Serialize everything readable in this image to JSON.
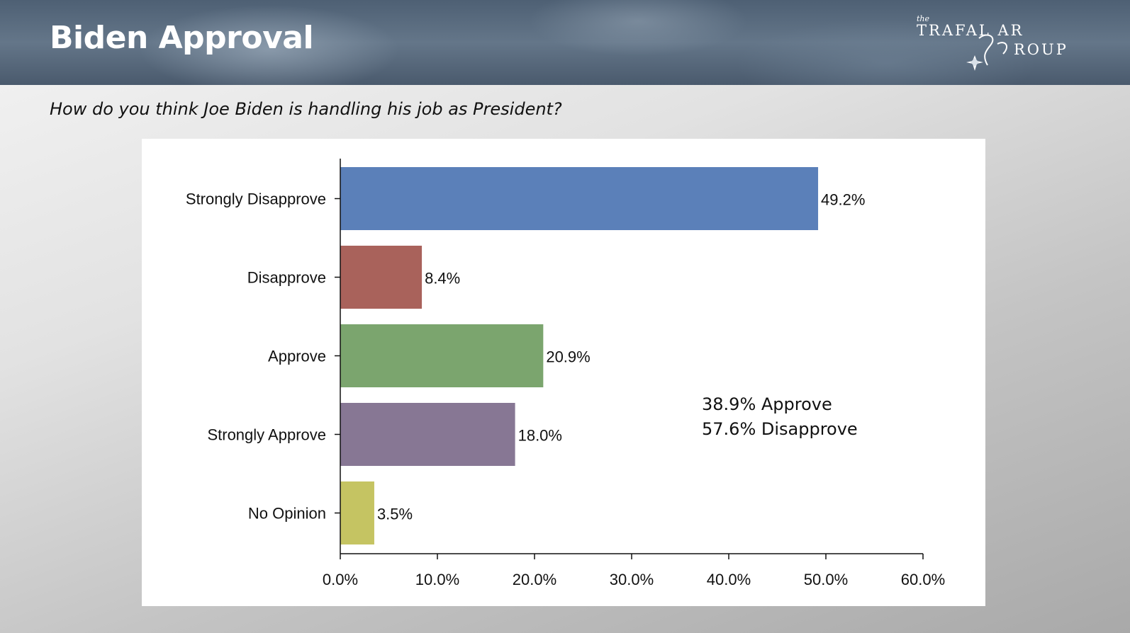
{
  "header": {
    "title": "Biden Approval",
    "logo": {
      "the": "the",
      "line1": "TRAFAL AR",
      "line2": "ROUP",
      "script_letters": "GG"
    }
  },
  "question": "How do you think Joe Biden is handling his job as President?",
  "chart_data": {
    "type": "bar",
    "orientation": "horizontal",
    "categories": [
      "Strongly Disapprove",
      "Disapprove",
      "Approve",
      "Strongly Approve",
      "No Opinion"
    ],
    "values": [
      49.2,
      8.4,
      20.9,
      18.0,
      3.5
    ],
    "value_labels": [
      "49.2%",
      "8.4%",
      "20.9%",
      "18.0%",
      "3.5%"
    ],
    "colors": [
      "#5b80b9",
      "#a9625b",
      "#7ba56e",
      "#877794",
      "#c5c462"
    ],
    "xlim": [
      0,
      60
    ],
    "xticks": [
      0,
      10,
      20,
      30,
      40,
      50,
      60
    ],
    "xtick_labels": [
      "0.0%",
      "10.0%",
      "20.0%",
      "30.0%",
      "40.0%",
      "50.0%",
      "60.0%"
    ],
    "grid": false,
    "legend": "none",
    "annotation": [
      "38.9% Approve",
      "57.6% Disapprove"
    ]
  }
}
